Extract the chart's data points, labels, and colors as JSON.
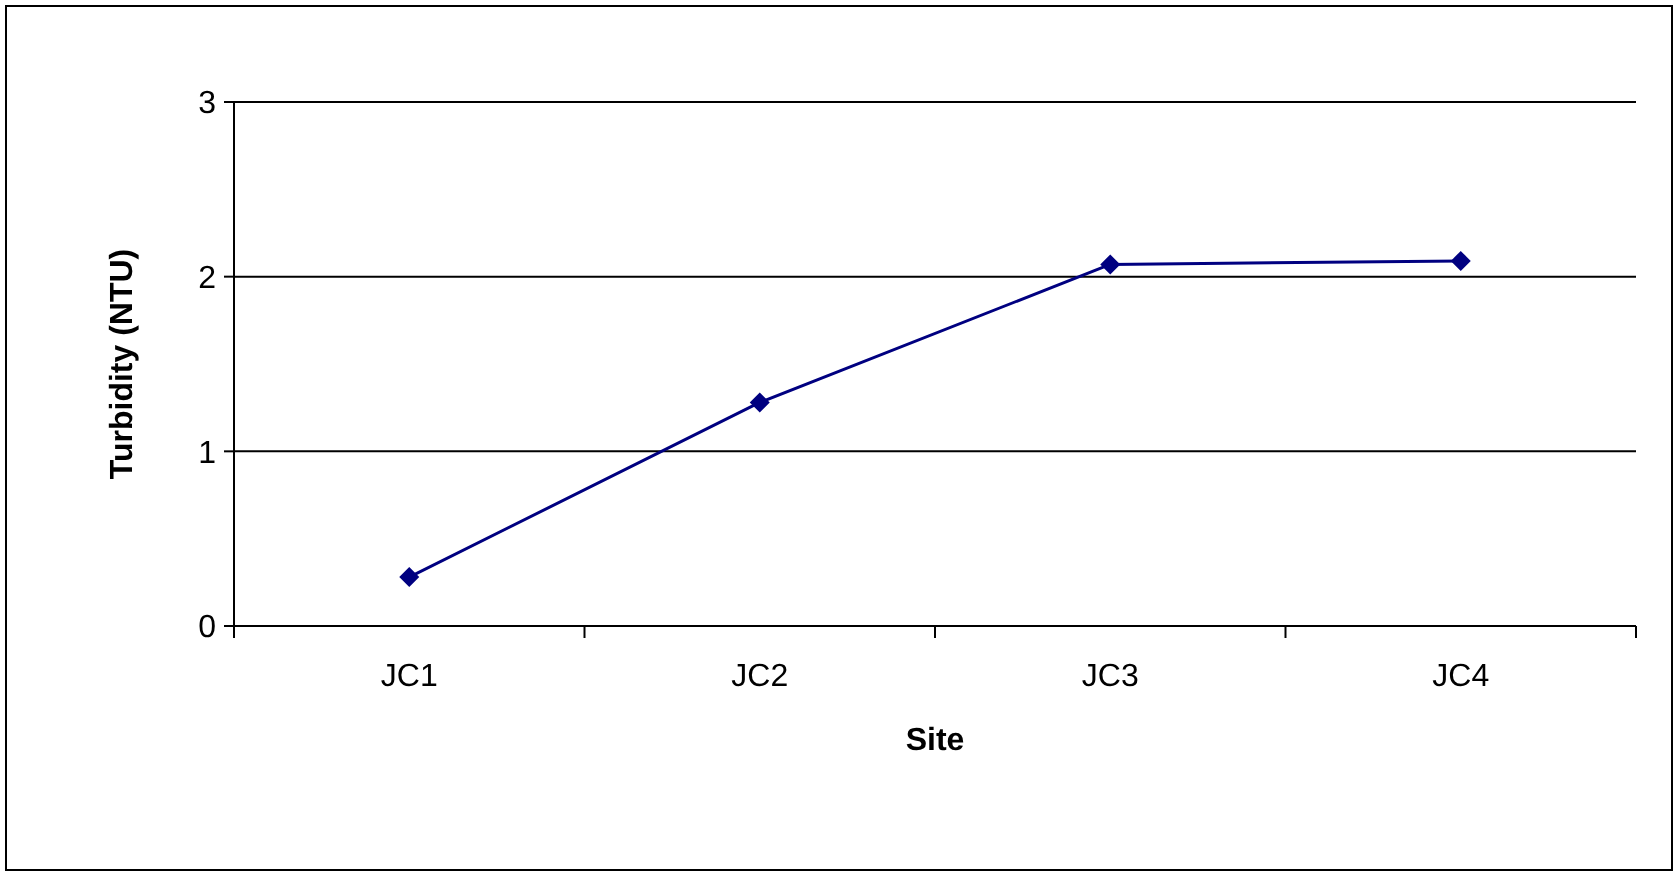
{
  "chart_data": {
    "type": "line",
    "xlabel": "Site",
    "ylabel": "Turbidity (NTU)",
    "categories": [
      "JC1",
      "JC2",
      "JC3",
      "JC4"
    ],
    "series": [
      {
        "color": "#000080",
        "values": [
          0.28,
          1.28,
          2.07,
          2.09
        ]
      }
    ],
    "ylim": [
      0,
      3
    ],
    "yticks": [
      0,
      1,
      2,
      3
    ],
    "grid": "y",
    "marker": "diamond",
    "line_style": "solid"
  }
}
